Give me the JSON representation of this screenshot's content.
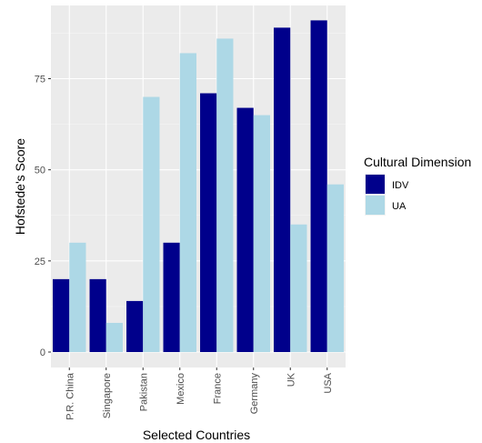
{
  "chart_data": {
    "type": "bar",
    "bar_mode": "grouped",
    "xlabel": "Selected Countries",
    "ylabel": "Hofstede's Score",
    "ylim": [
      0,
      95
    ],
    "yticks": [
      0,
      25,
      50,
      75
    ],
    "ytick_labels": [
      "0",
      "25",
      "50",
      "75"
    ],
    "categories": [
      "P.R. China",
      "Singapore",
      "Pakistan",
      "Mexico",
      "France",
      "Germany",
      "UK",
      "USA"
    ],
    "series": [
      {
        "name": "IDV",
        "color": "#00008B",
        "values": [
          20,
          20,
          14,
          30,
          71,
          67,
          89,
          91
        ]
      },
      {
        "name": "UA",
        "color": "#ADD8E6",
        "values": [
          30,
          8,
          70,
          82,
          86,
          65,
          35,
          46
        ]
      }
    ],
    "legend": {
      "title": "Cultural Dimension",
      "position": "right"
    },
    "grid": true,
    "panel_background": "#EBEBEB",
    "gridline_color": "#FFFFFF"
  }
}
